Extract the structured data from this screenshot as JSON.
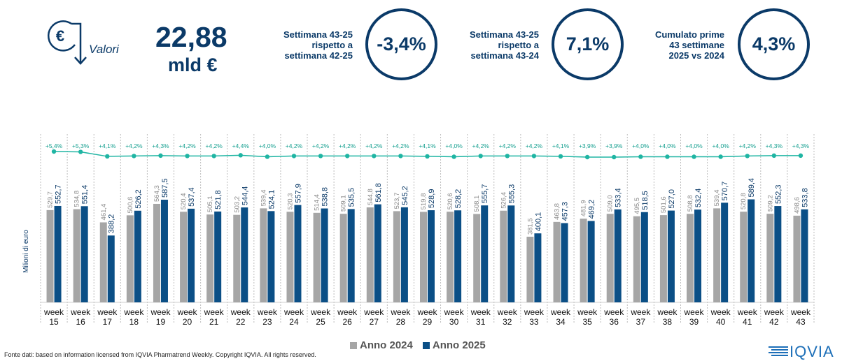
{
  "header": {
    "valori_label": "Valori",
    "total_value": "22,88",
    "total_unit": "mld €",
    "kpis": [
      {
        "label_lines": [
          "Settimana 43-25",
          "rispetto a",
          "settimana 42-25"
        ],
        "value": "-3,4%"
      },
      {
        "label_lines": [
          "Settimana 43-25",
          "rispetto a",
          "settimana 43-24"
        ],
        "value": "7,1%"
      },
      {
        "label_lines": [
          "Cumulato prime",
          "43 settimane",
          "2025 vs 2024"
        ],
        "value": "4,3%"
      }
    ]
  },
  "colors": {
    "series_2024": "#a6a6a6",
    "series_2025": "#0b4f86",
    "growth_line": "#1fb5a3",
    "kpi": "#0b3a68"
  },
  "icons": [
    "euro-down-arrow-icon"
  ],
  "chart_data": {
    "type": "bar",
    "title": "",
    "xlabel": "",
    "ylabel": "Milioni di euro",
    "categories": [
      "week 15",
      "week 16",
      "week 17",
      "week 18",
      "week 19",
      "week 20",
      "week 21",
      "week 22",
      "week 23",
      "week 24",
      "week 25",
      "week 26",
      "week 27",
      "week 28",
      "week 29",
      "week 30",
      "week 31",
      "week 32",
      "week 33",
      "week 34",
      "week 35",
      "week 36",
      "week 37",
      "week 38",
      "week 39",
      "week 40",
      "week 41",
      "week 42",
      "week 43"
    ],
    "series": [
      {
        "name": "Anno 2024",
        "values": [
          529.7,
          534.8,
          461.4,
          500.6,
          564.3,
          520.4,
          505.1,
          503.2,
          539.4,
          520.3,
          514.4,
          509.1,
          544.8,
          523.7,
          519.8,
          520.6,
          508.1,
          526.4,
          381.5,
          463.8,
          481.9,
          509.0,
          495.5,
          501.6,
          508.8,
          539.4,
          520.8,
          509.2,
          498.6
        ],
        "labels": [
          "529,7",
          "534,8",
          "461,4",
          "500,6",
          "564,3",
          "520,4",
          "505,1",
          "503,2",
          "539,4",
          "520,3",
          "514,4",
          "509,1",
          "544,8",
          "523,7",
          "519,8",
          "520,6",
          "508,1",
          "526,4",
          "381,5",
          "463,8",
          "481,9",
          "509,0",
          "495,5",
          "501,6",
          "508,8",
          "539,4",
          "520,8",
          "509,2",
          "498,6"
        ]
      },
      {
        "name": "Anno 2025",
        "values": [
          552.7,
          551.4,
          388.2,
          526.2,
          587.5,
          537.4,
          521.8,
          544.4,
          524.1,
          557.9,
          538.8,
          535.5,
          561.8,
          545.2,
          528.9,
          528.2,
          555.7,
          555.3,
          400.1,
          457.3,
          469.2,
          533.4,
          518.5,
          527.0,
          532.4,
          570.7,
          589.4,
          552.3,
          533.8
        ],
        "labels": [
          "552,7",
          "551,4",
          "388,2",
          "526,2",
          "587,5",
          "537,4",
          "521,8",
          "544,4",
          "524,1",
          "557,9",
          "538,8",
          "535,5",
          "561,8",
          "545,2",
          "528,9",
          "528,2",
          "555,7",
          "555,3",
          "400,1",
          "457,3",
          "469,2",
          "533,4",
          "518,5",
          "527,0",
          "532,4",
          "570,7",
          "589,4",
          "552,3",
          "533,8"
        ]
      }
    ],
    "cumulative_growth": {
      "values": [
        5.4,
        5.3,
        4.1,
        4.2,
        4.3,
        4.2,
        4.2,
        4.4,
        4.0,
        4.2,
        4.2,
        4.2,
        4.2,
        4.2,
        4.1,
        4.0,
        4.2,
        4.2,
        4.2,
        4.1,
        3.9,
        3.9,
        4.0,
        4.0,
        4.0,
        4.0,
        4.2,
        4.3,
        4.3
      ],
      "labels": [
        "+5,4%",
        "+5,3%",
        "+4,1%",
        "+4,2%",
        "+4,3%",
        "+4,2%",
        "+4,2%",
        "+4,4%",
        "+4,0%",
        "+4,2%",
        "+4,2%",
        "+4,2%",
        "+4,2%",
        "+4,2%",
        "+4,1%",
        "+4,0%",
        "+4,2%",
        "+4,2%",
        "+4,2%",
        "+4,1%",
        "+3,9%",
        "+3,9%",
        "+4,0%",
        "+4,0%",
        "+4,0%",
        "+4,0%",
        "+4,2%",
        "+4,3%",
        "+4,3%"
      ]
    },
    "legend": {
      "placement": "bottom",
      "items": [
        "Anno 2024",
        "Anno 2025"
      ]
    }
  },
  "footer": {
    "source": "Fonte dati: based on information licensed from IQVIA Pharmatrend Weekly. Copyright IQVIA. All rights reserved.",
    "logo": "IQVIA"
  }
}
